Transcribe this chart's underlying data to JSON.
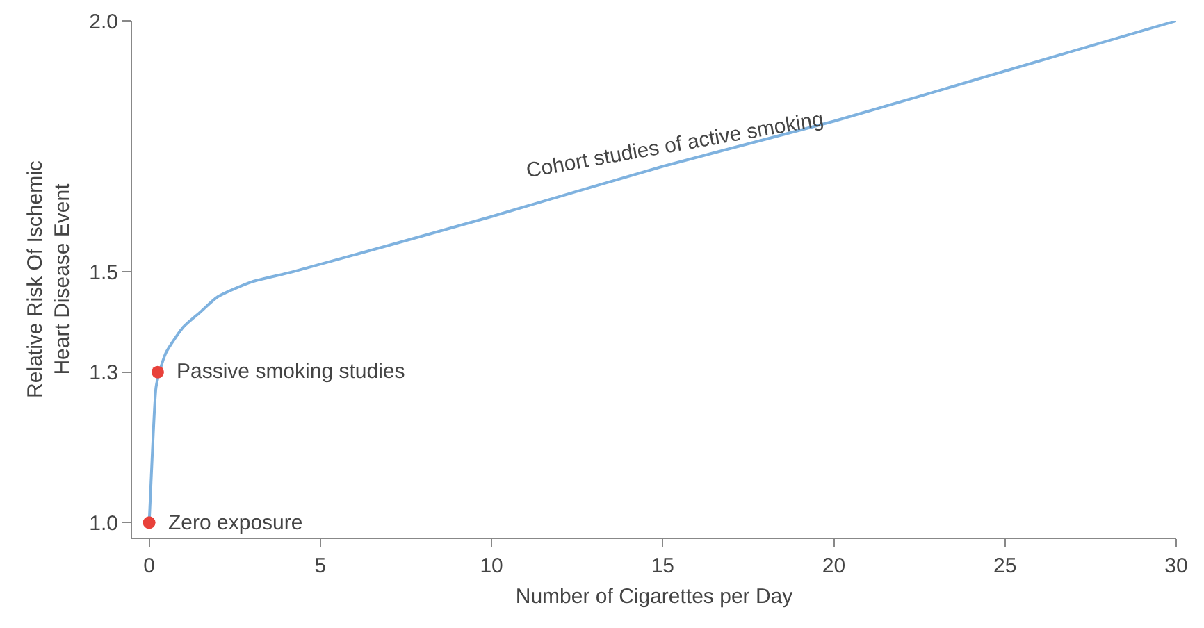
{
  "chart_data": {
    "type": "line",
    "xlabel": "Number of Cigarettes per Day",
    "ylabel": "Relative Risk Of Ischemic\nHeart Disease Event",
    "xlim": [
      -0.5,
      30
    ],
    "xticks": [
      0,
      5,
      10,
      15,
      20,
      25,
      30
    ],
    "ylim": [
      0.97,
      2.0
    ],
    "yticks": [
      {
        "value": 1,
        "label": "1.0"
      },
      1.3,
      1.5,
      {
        "value": 2,
        "label": "2.0"
      }
    ],
    "grid": false,
    "series": [
      {
        "color": "#7fb2df",
        "marker": "none",
        "x": [
          0,
          0.1,
          0.2,
          0.3,
          0.5,
          1,
          1.5,
          2,
          3,
          4.2,
          10,
          15,
          20,
          25,
          30
        ],
        "values": [
          1.0,
          1.15,
          1.27,
          1.3,
          1.34,
          1.39,
          1.42,
          1.45,
          1.48,
          1.5,
          1.61,
          1.71,
          1.8,
          1.9,
          2.0
        ]
      },
      {
        "type": "scatter",
        "color": "#e8413a",
        "marker": "circle",
        "x": [
          0,
          0.25
        ],
        "values": [
          1.0,
          1.3
        ]
      }
    ],
    "annotations": [
      {
        "text": "Zero exposure",
        "x": 0,
        "y": 1.0
      },
      {
        "text": "Passive smoking studies",
        "x": 0.25,
        "y": 1.3
      },
      "Cohort studies of active smoking"
    ]
  }
}
